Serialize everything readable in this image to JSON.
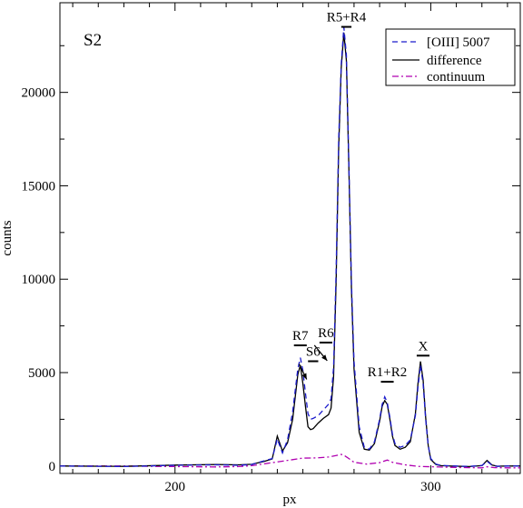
{
  "chart_data": {
    "type": "line",
    "panel_label": "S2",
    "xlabel": "px",
    "ylabel": "counts",
    "xlim": [
      155,
      335
    ],
    "ylim": [
      -400,
      24800
    ],
    "xticks": [
      200,
      300
    ],
    "yticks": [
      0,
      5000,
      10000,
      15000,
      20000
    ],
    "grid": false,
    "legend_placement": "top-right",
    "series": [
      {
        "name": "[OIII] 5007",
        "color": "#1a1acc",
        "dash": "dashed",
        "x": [
          155,
          180,
          200,
          216,
          225,
          230,
          235,
          238,
          240,
          242,
          244,
          246,
          248,
          249,
          250,
          251,
          252,
          253,
          254,
          256,
          258,
          260,
          261,
          262,
          263,
          264,
          265,
          266,
          267,
          268,
          269,
          270,
          272,
          274,
          276,
          278,
          280,
          281,
          282,
          283,
          284,
          285,
          286,
          288,
          290,
          292,
          294,
          295,
          296,
          297,
          298,
          299,
          300,
          302,
          304,
          306,
          310,
          315,
          320,
          322,
          324,
          326,
          330,
          335
        ],
        "y": [
          0,
          -30,
          40,
          60,
          40,
          80,
          280,
          400,
          1450,
          700,
          1400,
          2900,
          5200,
          5800,
          5100,
          3900,
          2800,
          2500,
          2550,
          2700,
          3000,
          3300,
          3600,
          5300,
          10500,
          17500,
          21500,
          23500,
          22000,
          16000,
          9800,
          5600,
          2100,
          1000,
          900,
          1300,
          2500,
          3300,
          3700,
          3400,
          2600,
          1700,
          1200,
          1000,
          1100,
          1400,
          2700,
          4200,
          5400,
          4400,
          2500,
          1100,
          400,
          100,
          30,
          20,
          0,
          -20,
          30,
          250,
          40,
          -20,
          0,
          0
        ]
      },
      {
        "name": "difference",
        "color": "#000000",
        "dash": "solid",
        "x": [
          155,
          180,
          200,
          216,
          225,
          230,
          235,
          238,
          240,
          242,
          244,
          246,
          248,
          249,
          250,
          251,
          252,
          253,
          254,
          256,
          258,
          260,
          261,
          262,
          263,
          264,
          265,
          266,
          267,
          268,
          269,
          270,
          272,
          274,
          276,
          278,
          280,
          281,
          282,
          283,
          284,
          285,
          286,
          288,
          290,
          292,
          294,
          295,
          296,
          297,
          298,
          299,
          300,
          302,
          304,
          306,
          310,
          315,
          320,
          322,
          324,
          326,
          330,
          335
        ],
        "y": [
          0,
          -20,
          50,
          80,
          60,
          90,
          250,
          380,
          1600,
          800,
          1250,
          2500,
          4900,
          5400,
          4400,
          3200,
          2100,
          1950,
          2000,
          2300,
          2550,
          2750,
          3100,
          4800,
          9900,
          17000,
          21300,
          23200,
          21700,
          15800,
          9400,
          5200,
          1800,
          900,
          850,
          1200,
          2400,
          3200,
          3500,
          3300,
          2500,
          1600,
          1100,
          900,
          1000,
          1300,
          2800,
          4400,
          5600,
          4600,
          2600,
          1100,
          350,
          80,
          20,
          10,
          -10,
          -30,
          20,
          300,
          50,
          -10,
          0,
          0
        ]
      },
      {
        "name": "continuum",
        "color": "#b000b0",
        "dash": "dashdot",
        "x": [
          155,
          180,
          200,
          216,
          225,
          230,
          240,
          250,
          255,
          260,
          263,
          265,
          266,
          268,
          270,
          275,
          280,
          283,
          285,
          290,
          295,
          300,
          305,
          310,
          315,
          320,
          322,
          325,
          330,
          335
        ],
        "y": [
          0,
          0,
          -30,
          -50,
          -30,
          20,
          220,
          420,
          430,
          480,
          560,
          620,
          580,
          400,
          200,
          100,
          180,
          320,
          200,
          60,
          -20,
          -40,
          -60,
          -80,
          -90,
          -100,
          -40,
          -90,
          -100,
          -100
        ]
      }
    ],
    "annotations": [
      {
        "label": "R5+R4",
        "x": 267,
        "y": 23800,
        "bar": [
          265,
          269
        ]
      },
      {
        "label": "R7",
        "x": 249,
        "y": 6750,
        "bar": [
          246.5,
          251.5
        ]
      },
      {
        "label": "R6",
        "x": 259,
        "y": 6900,
        "bar": [
          256.5,
          261.5
        ]
      },
      {
        "label": "S6",
        "x": 254,
        "y": 5900,
        "bar": [
          252,
          256
        ]
      },
      {
        "label": "R1+R2",
        "x": 283,
        "y": 4800,
        "bar": [
          280.5,
          285.5
        ]
      },
      {
        "label": "X",
        "x": 297,
        "y": 6200,
        "bar": [
          294.5,
          299.5
        ]
      }
    ]
  }
}
